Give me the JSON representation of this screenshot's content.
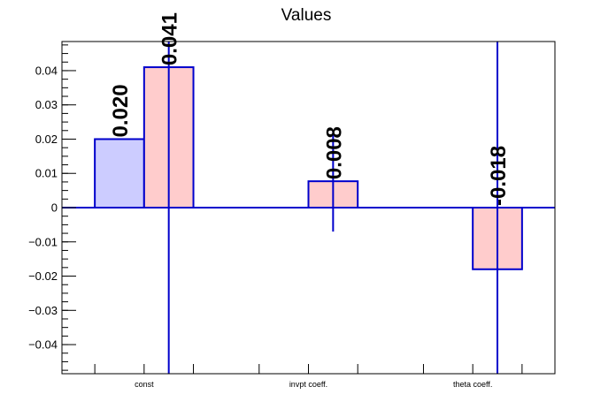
{
  "chart_data": {
    "type": "bar",
    "title": "Values",
    "xlabel": "",
    "ylabel": "",
    "categories": [
      "const",
      "invpt coeff.",
      "theta coeff."
    ],
    "series": [
      {
        "values": [
          0.02,
          null,
          null
        ],
        "errors": [
          null,
          null,
          null
        ],
        "labels": [
          "0.020",
          "",
          ""
        ]
      },
      {
        "values": [
          0.041,
          0.0077,
          -0.018
        ],
        "errors": [
          0.45,
          0.0147,
          0.45
        ],
        "labels": [
          "0.041",
          "0.008",
          "-0.018"
        ]
      }
    ],
    "ylim": [
      -0.0485,
      0.0485
    ],
    "yticks": [
      -0.04,
      -0.03,
      -0.02,
      -0.01,
      0,
      0.01,
      0.02,
      0.03,
      0.04
    ],
    "ytick_labels": [
      "−0.04",
      "−0.03",
      "−0.02",
      "−0.01",
      "0",
      "0.01",
      "0.02",
      "0.03",
      "0.04"
    ],
    "grid": false,
    "legend": "none",
    "colors": {
      "series_fill": [
        "#ccccff",
        "#ffcccc"
      ],
      "series_edge": "#0000cc",
      "axis": "#000000"
    }
  }
}
